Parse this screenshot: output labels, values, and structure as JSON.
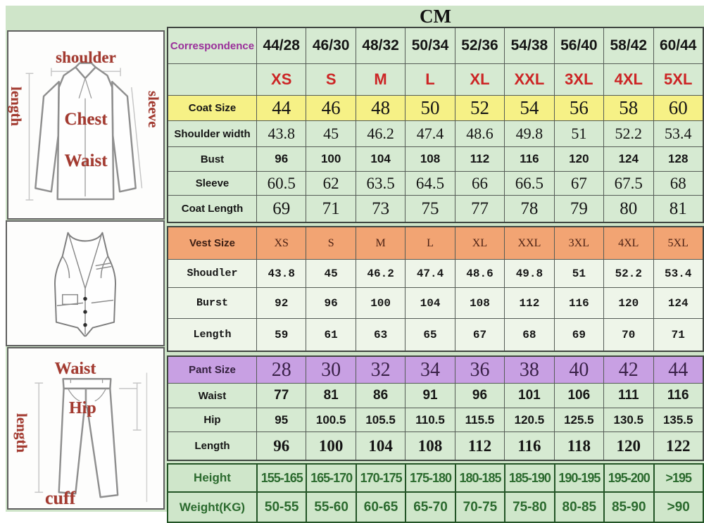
{
  "chart_data": {
    "type": "table",
    "title": "CM",
    "unit": "CM",
    "sections": [
      {
        "name": "coat",
        "rows": [
          {
            "kind": "correspondence",
            "label": "Correspondence",
            "values": [
              "44/28",
              "46/30",
              "48/32",
              "50/34",
              "52/36",
              "54/38",
              "56/40",
              "58/42",
              "60/44"
            ]
          },
          {
            "kind": "sizes",
            "label": "",
            "values": [
              "XS",
              "S",
              "M",
              "L",
              "XL",
              "XXL",
              "3XL",
              "4XL",
              "5XL"
            ]
          },
          {
            "kind": "coat-size",
            "label": "Coat Size",
            "values": [
              "44",
              "46",
              "48",
              "50",
              "52",
              "54",
              "56",
              "58",
              "60"
            ]
          },
          {
            "kind": "shoulder-width",
            "label": "Shoulder width",
            "values": [
              "43.8",
              "45",
              "46.2",
              "47.4",
              "48.6",
              "49.8",
              "51",
              "52.2",
              "53.4"
            ]
          },
          {
            "kind": "bust",
            "label": "Bust",
            "values": [
              "96",
              "100",
              "104",
              "108",
              "112",
              "116",
              "120",
              "124",
              "128"
            ]
          },
          {
            "kind": "sleeve",
            "label": "Sleeve",
            "values": [
              "60.5",
              "62",
              "63.5",
              "64.5",
              "66",
              "66.5",
              "67",
              "67.5",
              "68"
            ]
          },
          {
            "kind": "coat-length",
            "label": "Coat Length",
            "values": [
              "69",
              "71",
              "73",
              "75",
              "77",
              "78",
              "79",
              "80",
              "81"
            ]
          }
        ]
      },
      {
        "name": "vest",
        "rows": [
          {
            "kind": "vest-size",
            "label": "Vest Size",
            "values": [
              "XS",
              "S",
              "M",
              "L",
              "XL",
              "XXL",
              "3XL",
              "4XL",
              "5XL"
            ]
          },
          {
            "kind": "vest-shoulder",
            "label": "Shoudler",
            "values": [
              "43.8",
              "45",
              "46.2",
              "47.4",
              "48.6",
              "49.8",
              "51",
              "52.2",
              "53.4"
            ]
          },
          {
            "kind": "vest-bust",
            "label": "Burst",
            "values": [
              "92",
              "96",
              "100",
              "104",
              "108",
              "112",
              "116",
              "120",
              "124"
            ]
          },
          {
            "kind": "vest-length",
            "label": "Length",
            "values": [
              "59",
              "61",
              "63",
              "65",
              "67",
              "68",
              "69",
              "70",
              "71"
            ]
          }
        ]
      },
      {
        "name": "pants",
        "rows": [
          {
            "kind": "pant-size",
            "label": "Pant Size",
            "values": [
              "28",
              "30",
              "32",
              "34",
              "36",
              "38",
              "40",
              "42",
              "44"
            ]
          },
          {
            "kind": "pant-waist",
            "label": "Waist",
            "values": [
              "77",
              "81",
              "86",
              "91",
              "96",
              "101",
              "106",
              "111",
              "116"
            ]
          },
          {
            "kind": "hip",
            "label": "Hip",
            "values": [
              "95",
              "100.5",
              "105.5",
              "110.5",
              "115.5",
              "120.5",
              "125.5",
              "130.5",
              "135.5"
            ]
          },
          {
            "kind": "pant-length",
            "label": "Length",
            "values": [
              "96",
              "100",
              "104",
              "108",
              "112",
              "116",
              "118",
              "120",
              "122"
            ]
          }
        ]
      },
      {
        "name": "body",
        "rows": [
          {
            "kind": "height",
            "label": "Height",
            "values": [
              "155-165",
              "165-170",
              "170-175",
              "175-180",
              "180-185",
              "185-190",
              "190-195",
              "195-200",
              ">195"
            ]
          },
          {
            "kind": "weight",
            "label": "Weight(KG)",
            "values": [
              "50-55",
              "55-60",
              "60-65",
              "65-70",
              "70-75",
              "75-80",
              "80-85",
              "85-90",
              ">90"
            ]
          }
        ]
      }
    ]
  },
  "figures": {
    "jacket": {
      "labels": {
        "shoulder": "shoulder",
        "length": "length",
        "sleeve": "sleeve",
        "chest": "Chest",
        "waist": "Waist"
      }
    },
    "pants": {
      "labels": {
        "waist": "Waist",
        "length": "length",
        "hip": "Hip",
        "cuff": "cuff"
      }
    }
  },
  "colors": {
    "panel_green": "#cfe5c9",
    "coat_header_yellow": "#f6f186",
    "vest_header_orange": "#f2a473",
    "pant_header_purple": "#c8a0e3",
    "size_text_red": "#cc2525",
    "correspondence_purple": "#9a2f9a",
    "body_section_green": "#2b6a2e",
    "sketch_label_red": "#a33a30"
  }
}
